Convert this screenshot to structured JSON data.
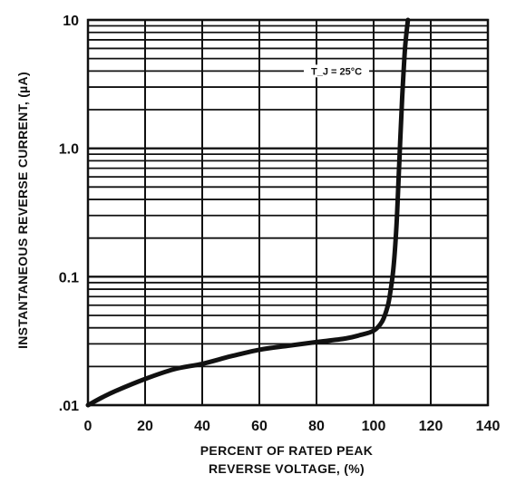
{
  "chart_data": {
    "type": "line",
    "title": "",
    "xlabel": [
      "PERCENT OF RATED PEAK",
      "REVERSE VOLTAGE, (%)"
    ],
    "ylabel": "INSTANTANEOUS REVERSE CURRENT, (µA)",
    "xlim": [
      0,
      140
    ],
    "ylim": [
      0.01,
      10
    ],
    "yscale": "log",
    "grid": true,
    "x_ticks": [
      0,
      20,
      40,
      60,
      80,
      100,
      120,
      140
    ],
    "x_tick_labels": [
      "0",
      "20",
      "40",
      "60",
      "80",
      "100",
      "120",
      "140"
    ],
    "y_ticks": [
      0.01,
      0.1,
      1,
      10
    ],
    "y_tick_labels": [
      ".01",
      "0.1",
      "1.0",
      "10"
    ],
    "annotation": "T_J = 25°C",
    "series": [
      {
        "x": [
          0,
          5,
          10,
          20,
          30,
          40,
          50,
          60,
          70,
          80,
          90,
          95,
          100,
          103,
          105,
          106,
          107,
          108,
          109,
          110,
          111,
          112
        ],
        "y": [
          0.01,
          0.0115,
          0.013,
          0.016,
          0.019,
          0.021,
          0.024,
          0.027,
          0.029,
          0.031,
          0.033,
          0.035,
          0.038,
          0.045,
          0.06,
          0.08,
          0.12,
          0.25,
          0.8,
          2.5,
          6.0,
          10.0
        ]
      }
    ]
  }
}
